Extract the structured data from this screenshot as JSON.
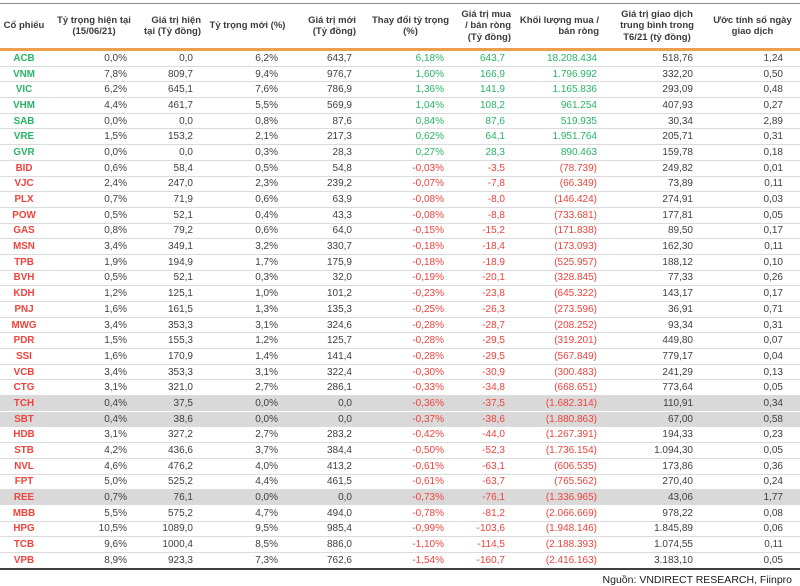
{
  "chart_data": {
    "type": "table",
    "columns": [
      "Cổ phiếu",
      "Tỷ trọng hiện tại (15/06/21)",
      "Giá trị hiện tại (Tỷ đồng)",
      "Tỷ trọng mới (%)",
      "Giá trị mới (Tỷ đồng)",
      "Thay đổi tỷ trọng (%)",
      "Giá trị mua / bán ròng (Tỷ đồng)",
      "Khối lượng mua / bán ròng",
      "Giá trị giao dịch trung bình trong T6/21 (tỷ đồng)",
      "Ước tính số ngày giao dịch"
    ],
    "rows": [
      {
        "ticker": "ACB",
        "values": [
          "0,0%",
          "0,0",
          "6,2%",
          "643,7",
          "6,18%",
          "643,7",
          "18.208.434",
          "518,76",
          "1,24"
        ],
        "trend": "up",
        "highlight": false
      },
      {
        "ticker": "VNM",
        "values": [
          "7,8%",
          "809,7",
          "9,4%",
          "976,7",
          "1,60%",
          "166,9",
          "1.796.992",
          "332,20",
          "0,50"
        ],
        "trend": "up",
        "highlight": false
      },
      {
        "ticker": "VIC",
        "values": [
          "6,2%",
          "645,1",
          "7,6%",
          "786,9",
          "1,36%",
          "141,9",
          "1.165.836",
          "293,09",
          "0,48"
        ],
        "trend": "up",
        "highlight": false
      },
      {
        "ticker": "VHM",
        "values": [
          "4,4%",
          "461,7",
          "5,5%",
          "569,9",
          "1,04%",
          "108,2",
          "961.254",
          "407,93",
          "0,27"
        ],
        "trend": "up",
        "highlight": false
      },
      {
        "ticker": "SAB",
        "values": [
          "0,0%",
          "0,0",
          "0,8%",
          "87,6",
          "0,84%",
          "87,6",
          "519.935",
          "30,34",
          "2,89"
        ],
        "trend": "up",
        "highlight": false
      },
      {
        "ticker": "VRE",
        "values": [
          "1,5%",
          "153,2",
          "2,1%",
          "217,3",
          "0,62%",
          "64,1",
          "1.951.764",
          "205,71",
          "0,31"
        ],
        "trend": "up",
        "highlight": false
      },
      {
        "ticker": "GVR",
        "values": [
          "0,0%",
          "0,0",
          "0,3%",
          "28,3",
          "0,27%",
          "28,3",
          "890.463",
          "159,78",
          "0,18"
        ],
        "trend": "up",
        "highlight": false
      },
      {
        "ticker": "BID",
        "values": [
          "0,6%",
          "58,4",
          "0,5%",
          "54,8",
          "-0,03%",
          "-3,5",
          "(78.739)",
          "249,82",
          "0,01"
        ],
        "trend": "down",
        "highlight": false
      },
      {
        "ticker": "VJC",
        "values": [
          "2,4%",
          "247,0",
          "2,3%",
          "239,2",
          "-0,07%",
          "-7,8",
          "(66.349)",
          "73,89",
          "0,11"
        ],
        "trend": "down",
        "highlight": false
      },
      {
        "ticker": "PLX",
        "values": [
          "0,7%",
          "71,9",
          "0,6%",
          "63,9",
          "-0,08%",
          "-8,0",
          "(146.424)",
          "274,91",
          "0,03"
        ],
        "trend": "down",
        "highlight": false
      },
      {
        "ticker": "POW",
        "values": [
          "0,5%",
          "52,1",
          "0,4%",
          "43,3",
          "-0,08%",
          "-8,8",
          "(733.681)",
          "177,81",
          "0,05"
        ],
        "trend": "down",
        "highlight": false
      },
      {
        "ticker": "GAS",
        "values": [
          "0,8%",
          "79,2",
          "0,6%",
          "64,0",
          "-0,15%",
          "-15,2",
          "(171.838)",
          "89,50",
          "0,17"
        ],
        "trend": "down",
        "highlight": false
      },
      {
        "ticker": "MSN",
        "values": [
          "3,4%",
          "349,1",
          "3,2%",
          "330,7",
          "-0,18%",
          "-18,4",
          "(173.093)",
          "162,30",
          "0,11"
        ],
        "trend": "down",
        "highlight": false
      },
      {
        "ticker": "TPB",
        "values": [
          "1,9%",
          "194,9",
          "1,7%",
          "175,9",
          "-0,18%",
          "-18,9",
          "(525.957)",
          "188,12",
          "0,10"
        ],
        "trend": "down",
        "highlight": false
      },
      {
        "ticker": "BVH",
        "values": [
          "0,5%",
          "52,1",
          "0,3%",
          "32,0",
          "-0,19%",
          "-20,1",
          "(328.845)",
          "77,33",
          "0,26"
        ],
        "trend": "down",
        "highlight": false
      },
      {
        "ticker": "KDH",
        "values": [
          "1,2%",
          "125,1",
          "1,0%",
          "101,2",
          "-0,23%",
          "-23,8",
          "(645.322)",
          "143,17",
          "0,17"
        ],
        "trend": "down",
        "highlight": false
      },
      {
        "ticker": "PNJ",
        "values": [
          "1,6%",
          "161,5",
          "1,3%",
          "135,3",
          "-0,25%",
          "-26,3",
          "(273.596)",
          "36,91",
          "0,71"
        ],
        "trend": "down",
        "highlight": false
      },
      {
        "ticker": "MWG",
        "values": [
          "3,4%",
          "353,3",
          "3,1%",
          "324,6",
          "-0,28%",
          "-28,7",
          "(208.252)",
          "93,34",
          "0,31"
        ],
        "trend": "down",
        "highlight": false
      },
      {
        "ticker": "PDR",
        "values": [
          "1,5%",
          "155,3",
          "1,2%",
          "125,7",
          "-0,28%",
          "-29,5",
          "(319.201)",
          "449,80",
          "0,07"
        ],
        "trend": "down",
        "highlight": false
      },
      {
        "ticker": "SSI",
        "values": [
          "1,6%",
          "170,9",
          "1,4%",
          "141,4",
          "-0,28%",
          "-29,5",
          "(567.849)",
          "779,17",
          "0,04"
        ],
        "trend": "down",
        "highlight": false
      },
      {
        "ticker": "VCB",
        "values": [
          "3,4%",
          "353,3",
          "3,1%",
          "322,4",
          "-0,30%",
          "-30,9",
          "(300.483)",
          "241,29",
          "0,13"
        ],
        "trend": "down",
        "highlight": false
      },
      {
        "ticker": "CTG",
        "values": [
          "3,1%",
          "321,0",
          "2,7%",
          "286,1",
          "-0,33%",
          "-34,8",
          "(668.651)",
          "773,64",
          "0,05"
        ],
        "trend": "down",
        "highlight": false
      },
      {
        "ticker": "TCH",
        "values": [
          "0,4%",
          "37,5",
          "0,0%",
          "0,0",
          "-0,36%",
          "-37,5",
          "(1.682.314)",
          "110,91",
          "0,34"
        ],
        "trend": "down",
        "highlight": true
      },
      {
        "ticker": "SBT",
        "values": [
          "0,4%",
          "38,6",
          "0,0%",
          "0,0",
          "-0,37%",
          "-38,6",
          "(1.880.863)",
          "67,00",
          "0,58"
        ],
        "trend": "down",
        "highlight": true
      },
      {
        "ticker": "HDB",
        "values": [
          "3,1%",
          "327,2",
          "2,7%",
          "283,2",
          "-0,42%",
          "-44,0",
          "(1.267.391)",
          "194,33",
          "0,23"
        ],
        "trend": "down",
        "highlight": false
      },
      {
        "ticker": "STB",
        "values": [
          "4,2%",
          "436,6",
          "3,7%",
          "384,4",
          "-0,50%",
          "-52,3",
          "(1.736.154)",
          "1.094,30",
          "0,05"
        ],
        "trend": "down",
        "highlight": false
      },
      {
        "ticker": "NVL",
        "values": [
          "4,6%",
          "476,2",
          "4,0%",
          "413,2",
          "-0,61%",
          "-63,1",
          "(606.535)",
          "173,86",
          "0,36"
        ],
        "trend": "down",
        "highlight": false
      },
      {
        "ticker": "FPT",
        "values": [
          "5,0%",
          "525,2",
          "4,4%",
          "461,5",
          "-0,61%",
          "-63,7",
          "(765.562)",
          "270,40",
          "0,24"
        ],
        "trend": "down",
        "highlight": false
      },
      {
        "ticker": "REE",
        "values": [
          "0,7%",
          "76,1",
          "0,0%",
          "0,0",
          "-0,73%",
          "-76,1",
          "(1.336.965)",
          "43,06",
          "1,77"
        ],
        "trend": "down",
        "highlight": true
      },
      {
        "ticker": "MBB",
        "values": [
          "5,5%",
          "575,2",
          "4,7%",
          "494,0",
          "-0,78%",
          "-81,2",
          "(2.066.669)",
          "978,22",
          "0,08"
        ],
        "trend": "down",
        "highlight": false
      },
      {
        "ticker": "HPG",
        "values": [
          "10,5%",
          "1089,0",
          "9,5%",
          "985,4",
          "-0,99%",
          "-103,6",
          "(1.948.146)",
          "1.845,89",
          "0,06"
        ],
        "trend": "down",
        "highlight": false
      },
      {
        "ticker": "TCB",
        "values": [
          "9,6%",
          "1000,4",
          "8,5%",
          "886,0",
          "-1,10%",
          "-114,5",
          "(2.188.393)",
          "1.074,55",
          "0,11"
        ],
        "trend": "down",
        "highlight": false
      },
      {
        "ticker": "VPB",
        "values": [
          "8,9%",
          "923,3",
          "7,3%",
          "762,6",
          "-1,54%",
          "-160,7",
          "(2.416.163)",
          "3.183,10",
          "0,05"
        ],
        "trend": "down",
        "highlight": false
      }
    ],
    "source": "Nguồn: VNDIRECT RESEARCH, Fiinpro",
    "legend_position": "none",
    "grid": "horizontal-hairlines"
  },
  "colors": {
    "positive": "#27B564",
    "negative": "#F2423C",
    "header_rule": "#EDA04B",
    "row_highlight": "#D9D9D9",
    "body_text": "#404040"
  }
}
